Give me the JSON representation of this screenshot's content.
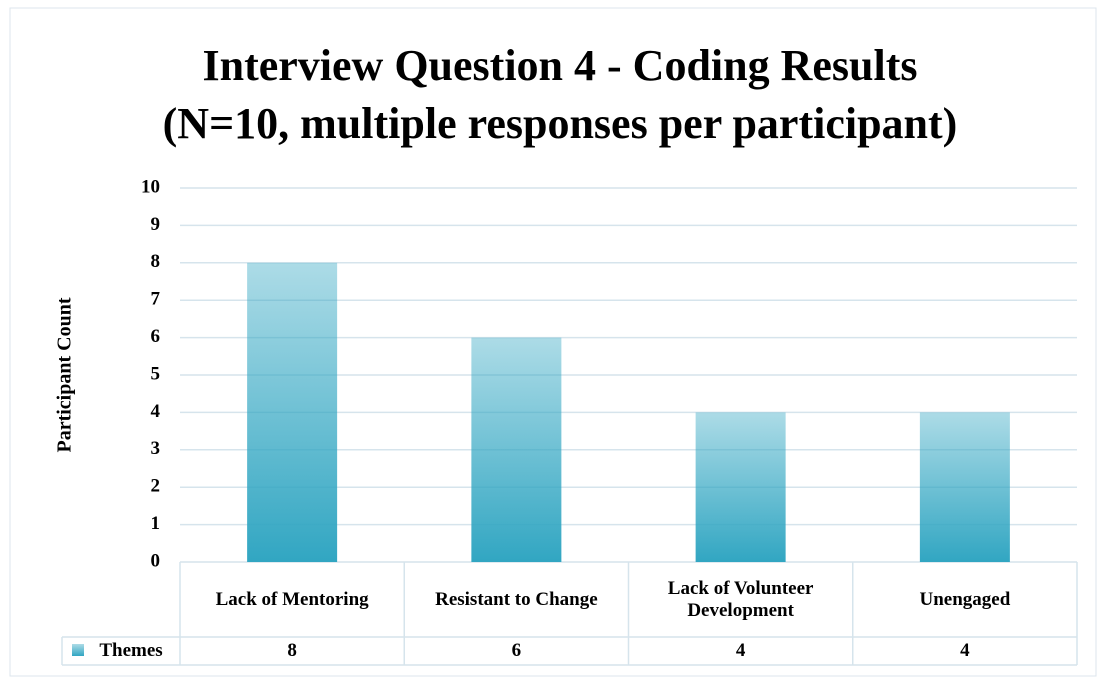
{
  "chart_data": {
    "type": "bar",
    "title": "Interview Question 4 - Coding Results",
    "subtitle": "(N=10, multiple responses per participant)",
    "y_label": "Participant Count",
    "categories": [
      "Lack of Mentoring",
      "Resistant to Change",
      "Lack of Volunteer Development",
      "Unengaged"
    ],
    "series": [
      {
        "name": "Themes",
        "color": "#31a6c2",
        "values": [
          8,
          6,
          4,
          4
        ]
      }
    ],
    "ylim": [
      0,
      10
    ],
    "yticks": [
      0,
      1,
      2,
      3,
      4,
      5,
      6,
      7,
      8,
      9,
      10
    ],
    "grid": true,
    "data_table": true
  }
}
